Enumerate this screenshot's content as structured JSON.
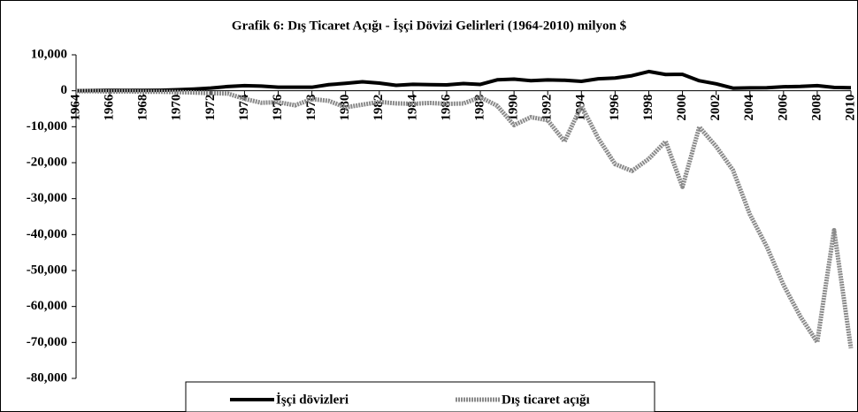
{
  "chart_data": {
    "type": "line",
    "title": "Grafik 6: Dış Ticaret Açığı - İşçi Dövizi Gelirleri (1964-2010) milyon $",
    "x": [
      1964,
      1965,
      1966,
      1967,
      1968,
      1969,
      1970,
      1971,
      1972,
      1973,
      1974,
      1975,
      1976,
      1977,
      1978,
      1979,
      1980,
      1981,
      1982,
      1983,
      1984,
      1985,
      1986,
      1987,
      1988,
      1989,
      1990,
      1991,
      1992,
      1993,
      1994,
      1995,
      1996,
      1997,
      1998,
      1999,
      2000,
      2001,
      2002,
      2003,
      2004,
      2005,
      2006,
      2007,
      2008,
      2009,
      2010
    ],
    "series": [
      {
        "name": "İşçi dövizleri",
        "color": "#000000",
        "values": [
          9,
          70,
          115,
          93,
          107,
          141,
          273,
          471,
          740,
          1183,
          1426,
          1312,
          982,
          982,
          983,
          1694,
          2071,
          2490,
          2140,
          1513,
          1807,
          1714,
          1634,
          2021,
          1776,
          3040,
          3246,
          2819,
          3008,
          2919,
          2627,
          3327,
          3542,
          4197,
          5356,
          4529,
          4560,
          2786,
          1936,
          729,
          804,
          851,
          1111,
          1209,
          1431,
          934,
          829
        ]
      },
      {
        "name": "Dış ticaret açığı",
        "color": "#8a8a8a",
        "values": [
          -126,
          -108,
          -228,
          -162,
          -267,
          -264,
          -360,
          -494,
          -678,
          -769,
          -2245,
          -3338,
          -3169,
          -4043,
          -2311,
          -2808,
          -4603,
          -3864,
          -3097,
          -3507,
          -3623,
          -3386,
          -3648,
          -3533,
          -1777,
          -4167,
          -9555,
          -7340,
          -8191,
          -14083,
          -4216,
          -13212,
          -20402,
          -22298,
          -18947,
          -14084,
          -26728,
          -10065,
          -15495,
          -22087,
          -34373,
          -43298,
          -54041,
          -62791,
          -69936,
          -38786,
          -71599
        ]
      }
    ],
    "xlim": [
      1964,
      2010
    ],
    "xticks": [
      1964,
      1966,
      1968,
      1970,
      1972,
      1974,
      1976,
      1978,
      1980,
      1982,
      1984,
      1986,
      1988,
      1990,
      1992,
      1994,
      1996,
      1998,
      2000,
      2002,
      2004,
      2006,
      2008,
      2010
    ],
    "ylim": [
      -80000,
      10000
    ],
    "yticks": [
      {
        "value": 10000,
        "label": "10,000"
      },
      0,
      {
        "value": -10000,
        "label": "-10,000"
      },
      {
        "value": -20000,
        "label": "-20,000"
      },
      {
        "value": -30000,
        "label": "-30,000"
      },
      {
        "value": -40000,
        "label": "-40,000"
      },
      {
        "value": -50000,
        "label": "-50,000"
      },
      {
        "value": -60000,
        "label": "-60,000"
      },
      {
        "value": -70000,
        "label": "-70,000"
      },
      {
        "value": -80000,
        "label": "-80,000"
      }
    ],
    "legend": "bottom"
  }
}
